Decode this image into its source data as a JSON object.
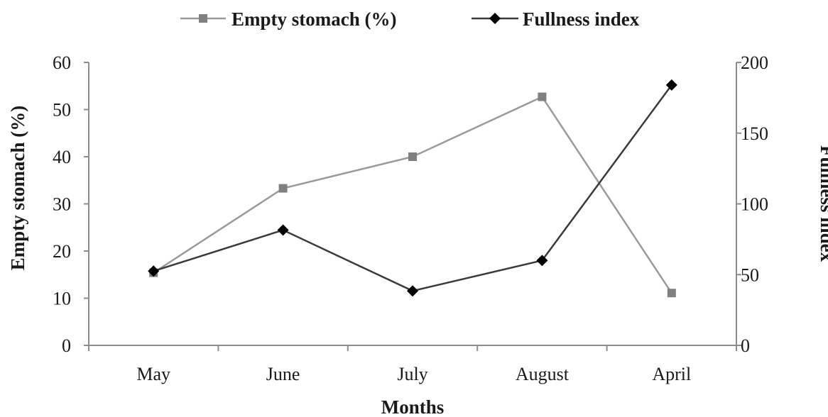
{
  "chart_data": {
    "type": "line",
    "categories": [
      "May",
      "June",
      "July",
      "August",
      "April"
    ],
    "xlabel": "Months",
    "ylabel": "Empty stomach (%)",
    "y2label": "Fullness index",
    "ylim": [
      0,
      60
    ],
    "y2lim": [
      0,
      200
    ],
    "yticks": [
      "0",
      "10",
      "20",
      "30",
      "40",
      "50",
      "60"
    ],
    "y2ticks": [
      "0",
      "50",
      "100",
      "150",
      "200"
    ],
    "legend_position": "top",
    "grid": false,
    "series": [
      {
        "name": "Empty stomach (%)",
        "axis": "left",
        "marker": "square",
        "color": "#9a9a9a",
        "marker_color": "#808080",
        "values": [
          15.4,
          33.3,
          40,
          52.7,
          11.1
        ]
      },
      {
        "name": "Fullness index",
        "axis": "right",
        "marker": "diamond",
        "color": "#3a3a3a",
        "marker_color": "#000000",
        "values": [
          52.5,
          81.5,
          38.5,
          60,
          184
        ]
      }
    ]
  }
}
